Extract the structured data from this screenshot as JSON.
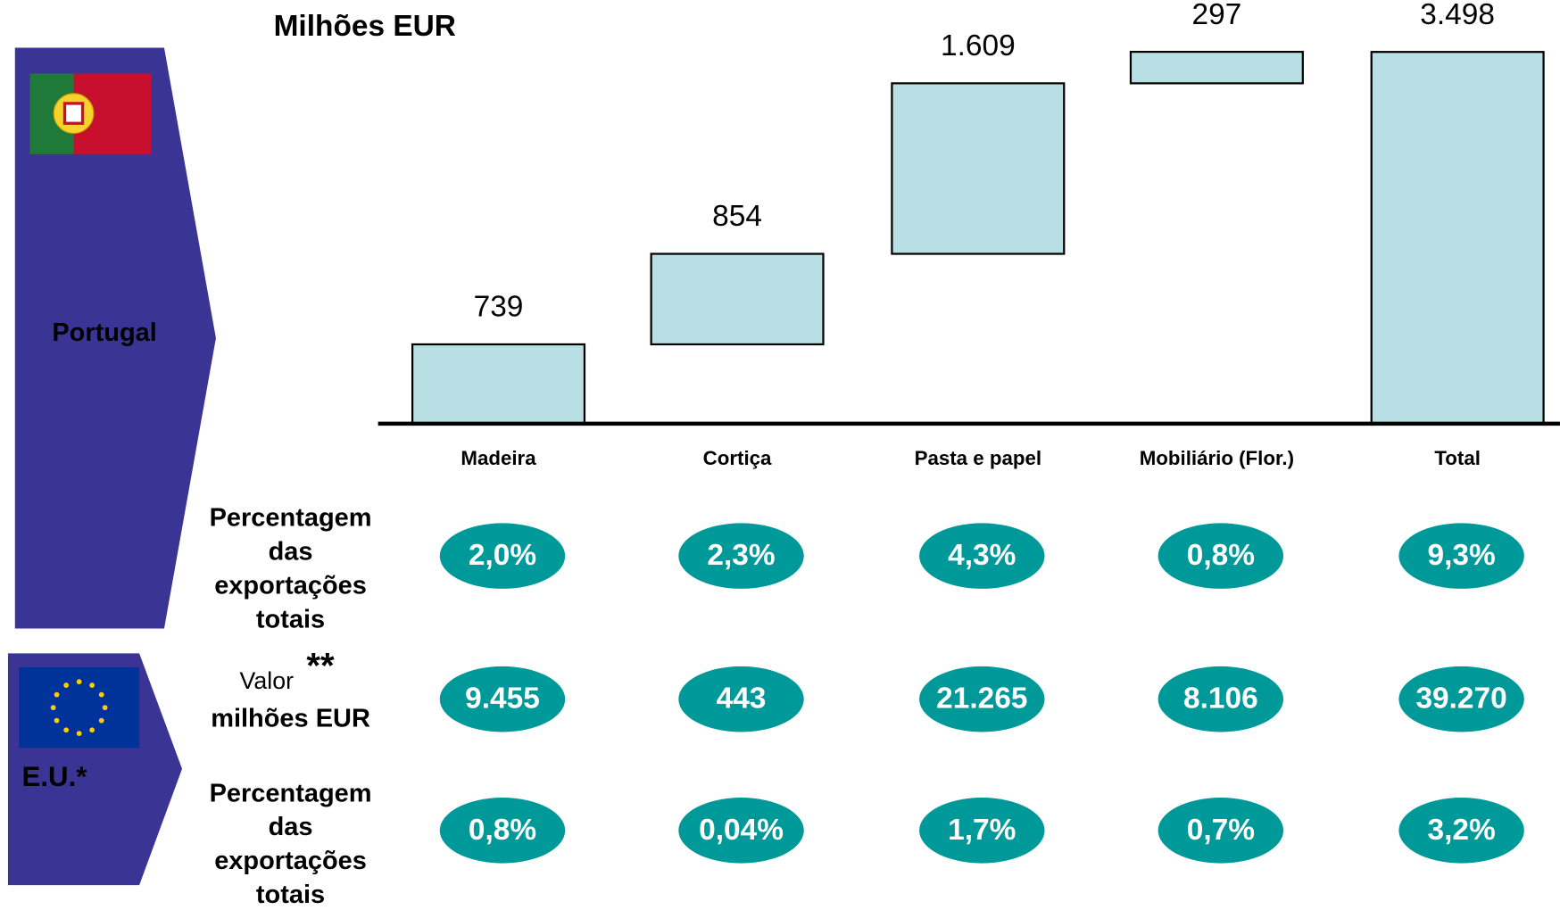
{
  "chart_data": {
    "type": "waterfall",
    "title": "Milhões EUR",
    "categories": [
      "Madeira",
      "Cortiça",
      "Pasta e papel",
      "Mobiliário (Flor.)",
      "Total"
    ],
    "values": [
      739,
      854,
      1609,
      297,
      3498
    ],
    "value_labels": [
      "739",
      "854",
      "1.609",
      "297",
      "3.498"
    ],
    "color": "#b8e0e4",
    "ylim": [
      0,
      3500
    ]
  },
  "groups": {
    "portugal": "Portugal",
    "eu": "E.U.*"
  },
  "table": {
    "rows": [
      {
        "label_lines": [
          "Percentagem",
          "das",
          "exportações",
          "totais"
        ],
        "cells": [
          "2,0%",
          "2,3%",
          "4,3%",
          "0,8%",
          "9,3%"
        ]
      },
      {
        "label_small": "Valor",
        "label_mark": "**",
        "label_lines": [
          "milhões EUR"
        ],
        "cells": [
          "9.455",
          "443",
          "21.265",
          "8.106",
          "39.270"
        ]
      },
      {
        "label_lines": [
          "Percentagem",
          "das",
          "exportações",
          "totais"
        ],
        "cells": [
          "0,8%",
          "0,04%",
          "1,7%",
          "0,7%",
          "3,2%"
        ]
      }
    ]
  }
}
